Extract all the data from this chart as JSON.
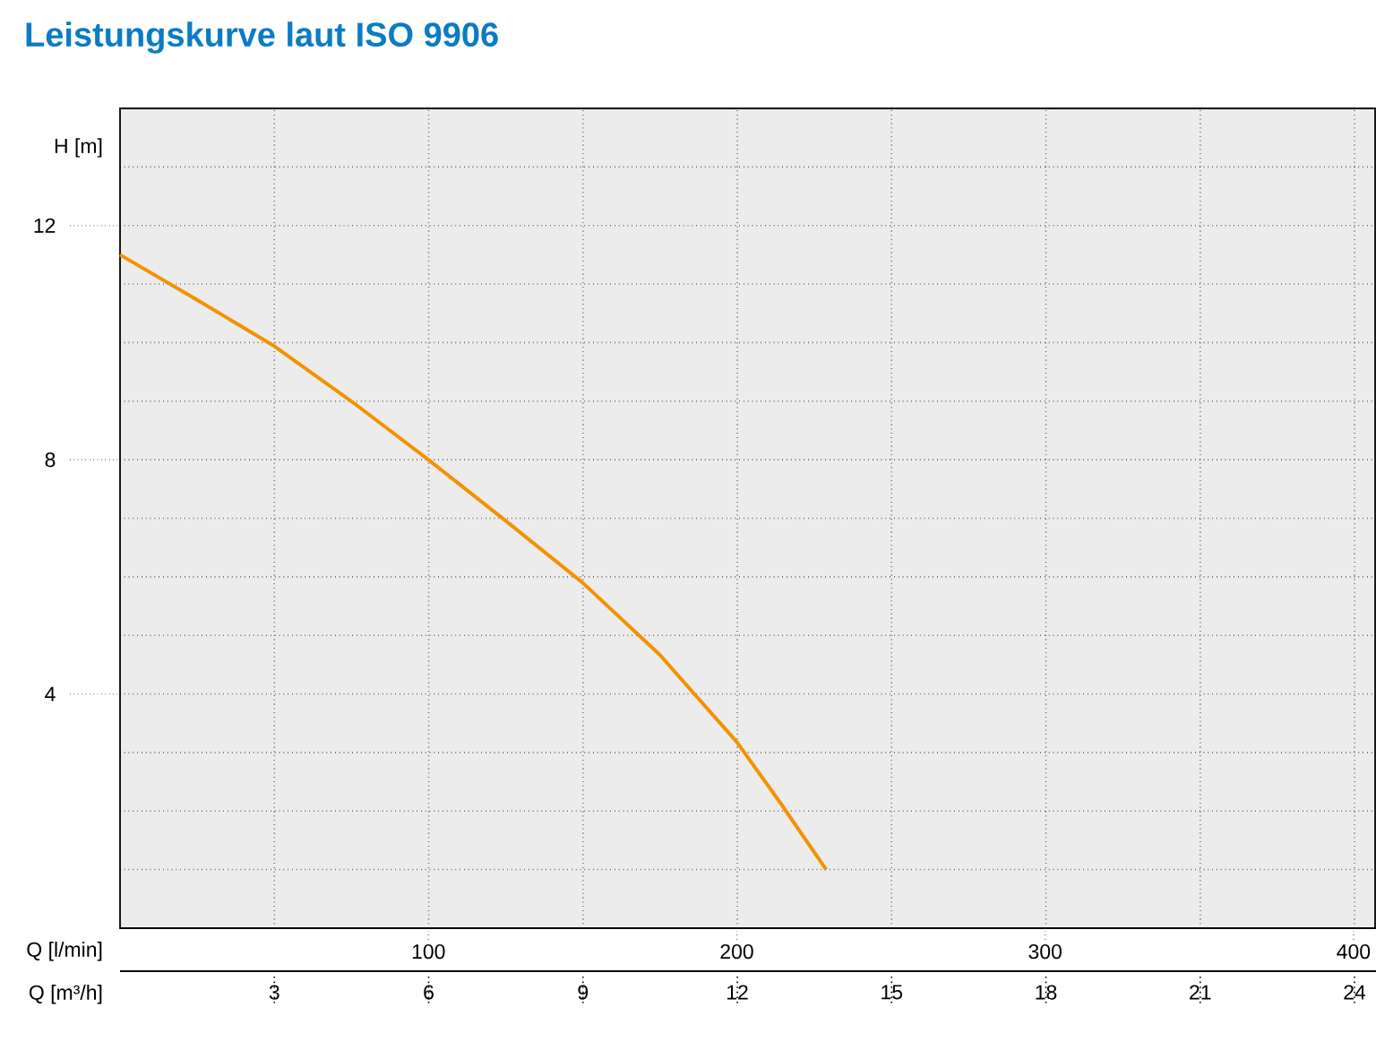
{
  "chart_data": {
    "type": "line",
    "title": "Leistungskurve laut ISO 9906",
    "xlabel": "Q [l/min]",
    "ylabel": "H [m]",
    "x2label": "Q [m³/h]",
    "xlim": [
      0,
      407
    ],
    "xticks": [
      100,
      200,
      300,
      400
    ],
    "x2lim": [
      0,
      24.4
    ],
    "x2ticks": [
      3,
      6,
      9,
      12,
      15,
      18,
      21,
      24
    ],
    "ylim": [
      0,
      14
    ],
    "yticks": [
      {
        "value": 1,
        "label": null
      },
      {
        "value": 2,
        "label": null
      },
      {
        "value": 3,
        "label": null
      },
      4,
      {
        "value": 5,
        "label": null
      },
      {
        "value": 6,
        "label": null
      },
      {
        "value": 7,
        "label": null
      },
      8,
      {
        "value": 9,
        "label": null
      },
      {
        "value": 10,
        "label": null
      },
      {
        "value": 11,
        "label": null
      },
      12,
      {
        "value": 13,
        "label": null
      }
    ],
    "grid": true,
    "series": [
      {
        "color": "#f39200",
        "x": [
          0,
          25,
          50,
          75,
          100,
          125,
          150,
          175,
          200,
          214,
          229
        ],
        "values": [
          11.5,
          10.73,
          9.94,
          9.0,
          8.0,
          6.96,
          5.9,
          4.67,
          3.18,
          2.15,
          1.0
        ]
      }
    ]
  }
}
